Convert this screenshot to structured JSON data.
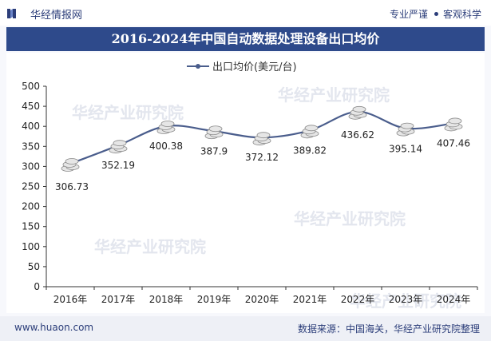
{
  "header": {
    "brand": "华经情报网",
    "slogan_1": "专业严谨",
    "slogan_2": "客观科学"
  },
  "watermark": "华经产业研究院",
  "footer": {
    "website": "www.huaon.com",
    "source": "数据来源：中国海关，华经产业研究院整理"
  },
  "colors": {
    "line": "#4a5d8c",
    "title_bg": "#2e4a8b",
    "accent": "#2c3e7a"
  },
  "chart_data": {
    "type": "line",
    "title": "2016-2024年中国自动数据处理设备出口均价",
    "categories": [
      "2016年",
      "2017年",
      "2018年",
      "2019年",
      "2020年",
      "2021年",
      "2022年",
      "2023年",
      "2024年"
    ],
    "series": [
      {
        "name": "出口均价(美元/台)",
        "values": [
          306.73,
          352.19,
          400.38,
          387.9,
          372.12,
          389.82,
          436.62,
          395.14,
          407.46
        ]
      }
    ],
    "data_labels": [
      "306.73",
      "352.19",
      "400.38",
      "387.9",
      "372.12",
      "389.82",
      "436.62",
      "395.14",
      "407.46"
    ],
    "ylim": [
      0,
      500
    ],
    "yticks": [
      0,
      50,
      100,
      150,
      200,
      250,
      300,
      350,
      400,
      450,
      500
    ],
    "xlabel": "",
    "ylabel": "",
    "legend_position": "top-center",
    "grid": false
  }
}
